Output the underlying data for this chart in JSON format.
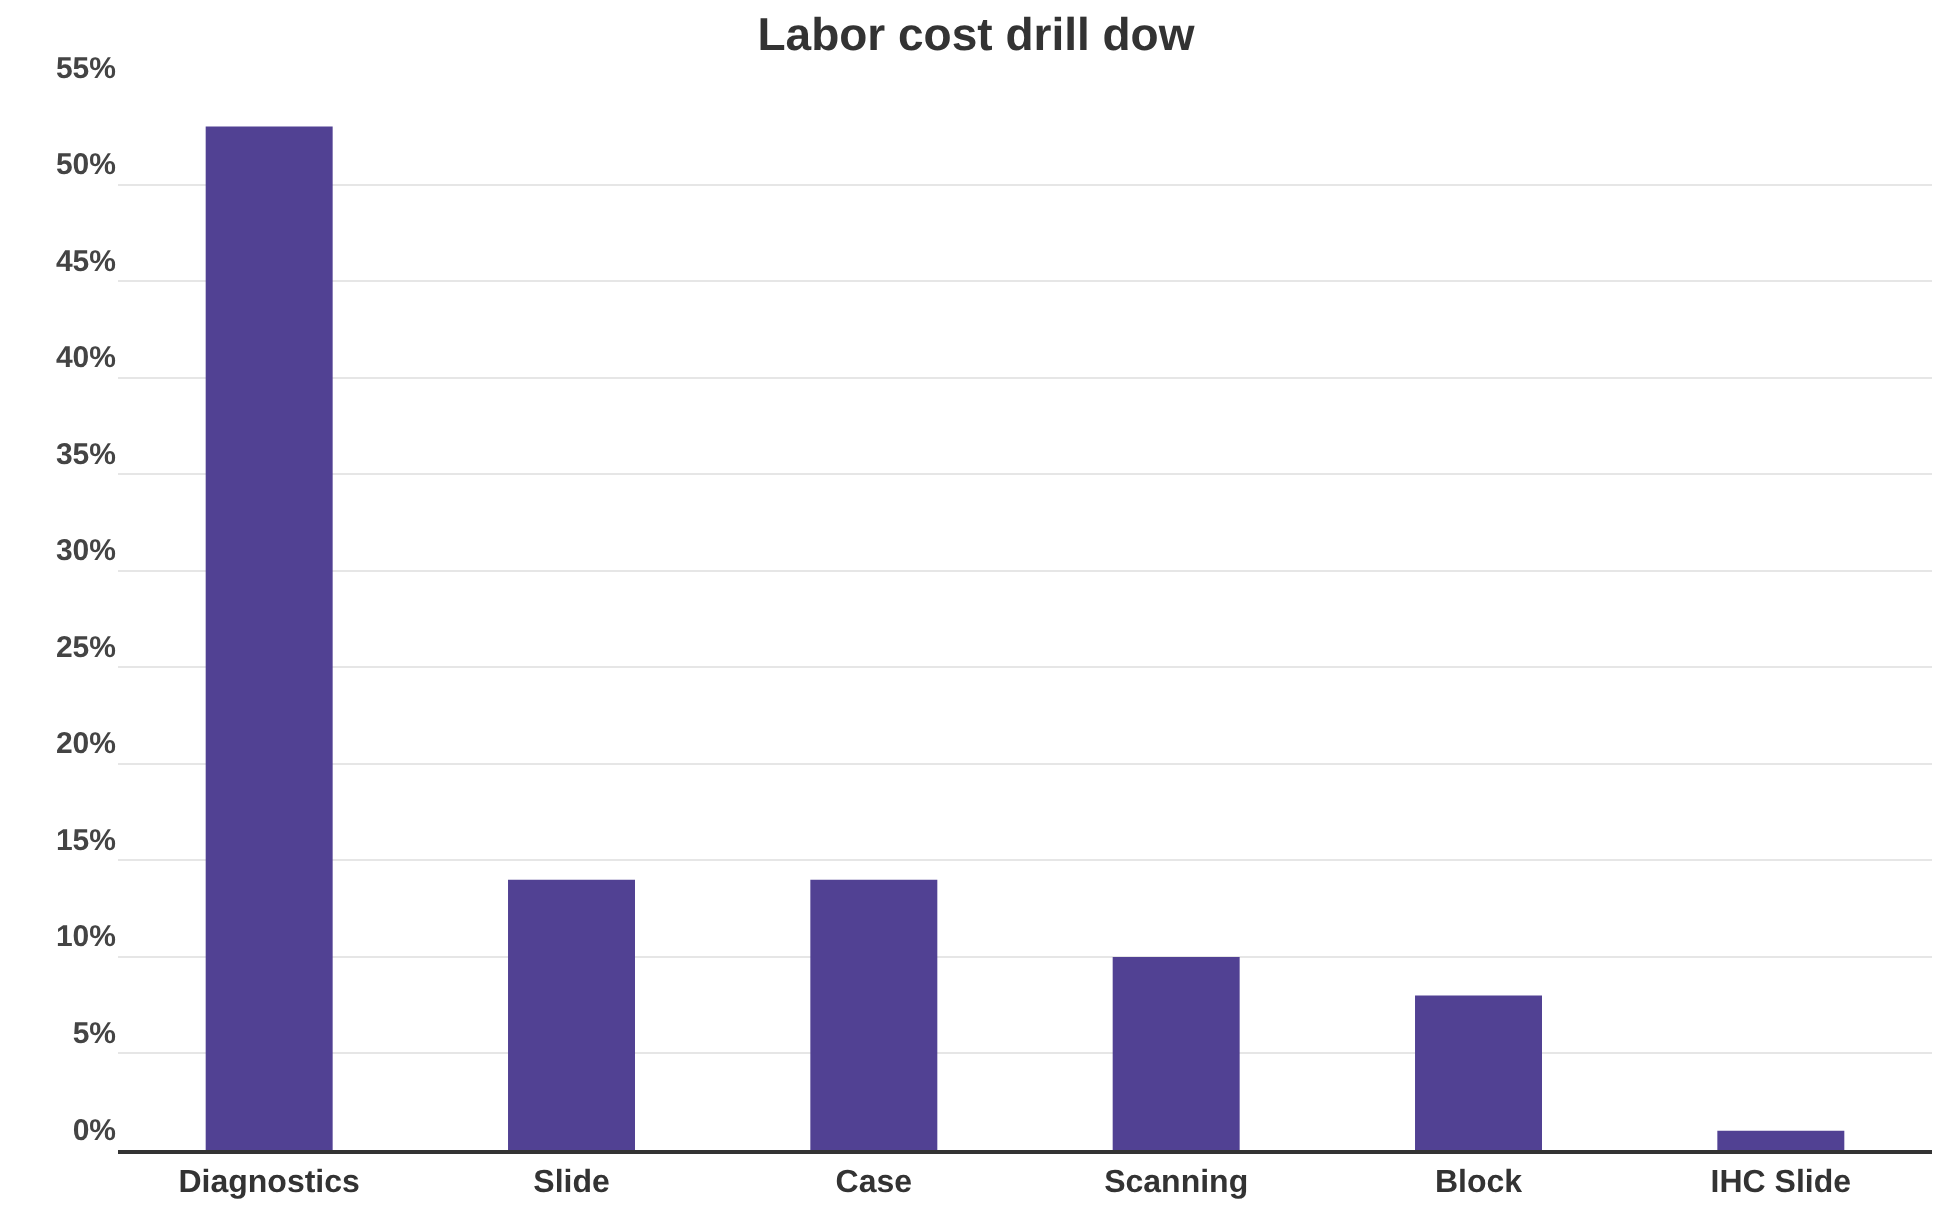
{
  "chart_data": {
    "type": "bar",
    "title": "Labor cost drill dow",
    "categories": [
      "Diagnostics",
      "Slide",
      "Case",
      "Scanning",
      "Block",
      "IHC Slide"
    ],
    "values": [
      53,
      14,
      14,
      10,
      8,
      1
    ],
    "color": "#514193",
    "ylim": [
      0,
      55
    ],
    "yticks": [
      {
        "value": 0,
        "label": "0%"
      },
      {
        "value": 5,
        "label": "5%"
      },
      {
        "value": 10,
        "label": "10%"
      },
      {
        "value": 15,
        "label": "15%"
      },
      {
        "value": 20,
        "label": "20%"
      },
      {
        "value": 25,
        "label": "25%"
      },
      {
        "value": 30,
        "label": "30%"
      },
      {
        "value": 35,
        "label": "35%"
      },
      {
        "value": 40,
        "label": "40%"
      },
      {
        "value": 45,
        "label": "45%"
      },
      {
        "value": 50,
        "label": "50%"
      },
      {
        "value": 55,
        "label": "55%"
      }
    ],
    "grid": "y"
  }
}
